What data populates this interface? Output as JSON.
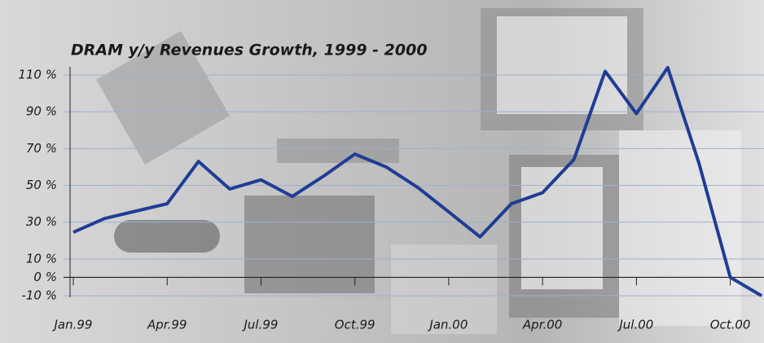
{
  "chart_data": {
    "type": "line",
    "title": "DRAM y/y Revenues Growth, 1999 - 2000",
    "categories": [
      "Jan.99",
      null,
      null,
      "Apr.99",
      null,
      null,
      "Jul.99",
      null,
      null,
      "Oct.99",
      null,
      null,
      "Jan.00",
      null,
      null,
      "Apr.00",
      null,
      null,
      "Jul.00",
      null,
      null,
      "Oct.00",
      null
    ],
    "series": [
      {
        "name": "DRAM y/y revenues growth",
        "color": "#1f3d96",
        "values": [
          24.5,
          32,
          36,
          40,
          63,
          48,
          53,
          44,
          55,
          67,
          60,
          49,
          35.6,
          22,
          40,
          46,
          64,
          112,
          89,
          114,
          62,
          0,
          -10
        ]
      }
    ],
    "ylim": [
      -10,
      110
    ],
    "yticks": [
      {
        "value": 110,
        "label": "110 %"
      },
      {
        "value": 90,
        "label": "90 %"
      },
      {
        "value": 70,
        "label": "70 %"
      },
      {
        "value": 50,
        "label": "50 %"
      },
      {
        "value": 30,
        "label": "30 %"
      },
      {
        "value": 10,
        "label": "10 %"
      },
      {
        "value": 0,
        "label": "0 %"
      },
      {
        "value": -10,
        "label": "-10 %"
      }
    ],
    "grid": true
  }
}
